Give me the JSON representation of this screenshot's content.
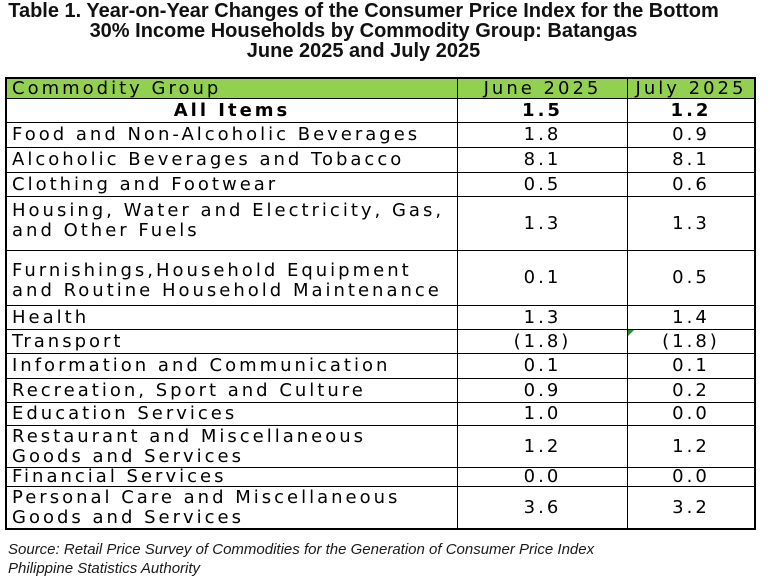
{
  "title": "Table 1. Year-on-Year Changes of the Consumer Price Index for the Bottom\n30% Income Households by Commodity Group: Batangas\nJune 2025 and July 2025",
  "table": {
    "headers": [
      "Commodity Group",
      "June 2025",
      "July 2025"
    ],
    "rows": [
      {
        "group": "All Items",
        "june_2025": "1.5",
        "july_2025": "1.2"
      },
      {
        "group": "Food and Non-Alcoholic Beverages",
        "june_2025": "1.8",
        "july_2025": "0.9"
      },
      {
        "group": "Alcoholic Beverages and Tobacco",
        "june_2025": "8.1",
        "july_2025": "8.1"
      },
      {
        "group": "Clothing and Footwear",
        "june_2025": "0.5",
        "july_2025": "0.6"
      },
      {
        "group": "Housing, Water and Electricity, Gas,\nand Other Fuels",
        "june_2025": "1.3",
        "july_2025": "1.3"
      },
      {
        "group": "Furnishings,Household Equipment\nand Routine Household Maintenance",
        "june_2025": "0.1",
        "july_2025": "0.5"
      },
      {
        "group": "Health",
        "june_2025": "1.3",
        "july_2025": "1.4"
      },
      {
        "group": "Transport",
        "june_2025": "(1.8)",
        "july_2025": "(1.8)"
      },
      {
        "group": "Information and Communication",
        "june_2025": "0.1",
        "july_2025": "0.1"
      },
      {
        "group": "Recreation, Sport and Culture",
        "june_2025": "0.9",
        "july_2025": "0.2"
      },
      {
        "group": "Education Services",
        "june_2025": "1.0",
        "july_2025": "0.0"
      },
      {
        "group": "Restaurant and Miscellaneous\nGoods and Services",
        "june_2025": "1.2",
        "july_2025": "1.2"
      },
      {
        "group": "Financial Services",
        "june_2025": "0.0",
        "july_2025": "0.0"
      },
      {
        "group": "Personal Care and Miscellaneous\nGoods and Services",
        "june_2025": "3.6",
        "july_2025": "3.2"
      }
    ]
  },
  "source": {
    "text": "Source: Retail Price Survey of Commodities for the Generation of Consumer Price Index",
    "agency": "Philippine Statistics Authority"
  },
  "colors": {
    "header_background": "#92D050",
    "cell_indicator": "#2E8B2E"
  }
}
